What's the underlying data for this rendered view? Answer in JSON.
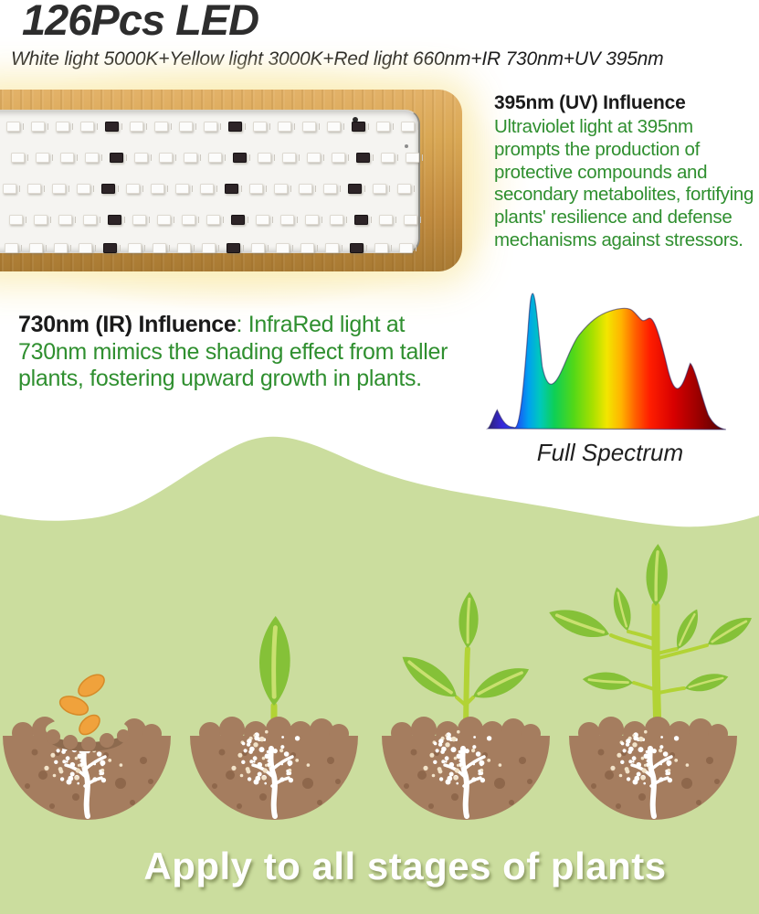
{
  "header": {
    "title": "126Pcs LED",
    "subtitle": "White light 5000K+Yellow light 3000K+Red light 660nm+IR 730nm+UV 395nm"
  },
  "uv_block": {
    "heading": "395nm (UV) Influence",
    "body": "Ultraviolet light at 395nm prompts the production of protective compounds and secondary metabolites, fortifying plants' resilience and defense mechanisms against stressors."
  },
  "ir_block": {
    "heading": "730nm (IR) Influence",
    "body": ": InfraRed light at 730nm mimics the shading effect from taller plants, fostering upward growth in plants."
  },
  "spectrum": {
    "caption": "Full Spectrum"
  },
  "growth": {
    "caption": "Apply to all stages of plants"
  },
  "colors": {
    "accent_green": "#2f8f2f",
    "heading_dark": "#1a1a1a",
    "background_green": "#cbdd9e",
    "soil_brown": "#a57d5f",
    "soil_dark": "#8a6348",
    "crater_brown": "#8d6a4e",
    "leaf_green": "#85c138",
    "stem_green": "#b2d335",
    "seed_orange": "#f0a23c",
    "wood_light": "#d9a855",
    "wood_dark": "#a87a33",
    "glow_yellow": "#fbf0c4"
  }
}
